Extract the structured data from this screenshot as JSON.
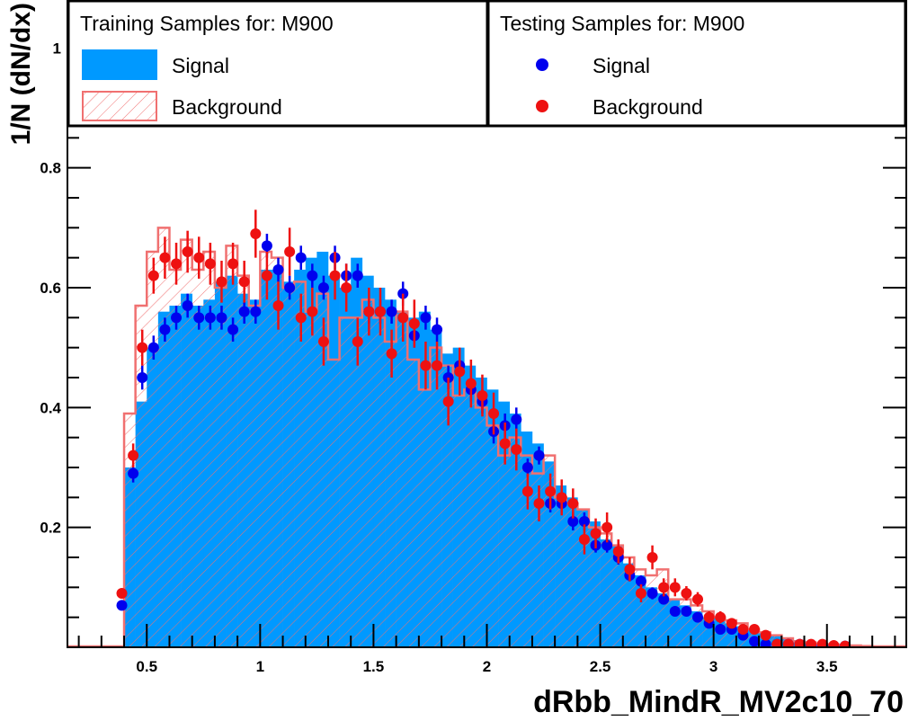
{
  "chart_data": {
    "type": "histogram",
    "xlabel": "dRbb_MindR_MV2c10_70",
    "ylabel": "1/N (dN/dx)",
    "xlim": [
      0.15,
      3.85
    ],
    "ylim": [
      0.0,
      1.08
    ],
    "bin_width": 0.05,
    "x_ticks": [
      {
        "value": 0.5,
        "label": "0.5"
      },
      {
        "value": 1.0,
        "label": "1"
      },
      {
        "value": 1.5,
        "label": "1.5"
      },
      {
        "value": 2.0,
        "label": "2"
      },
      {
        "value": 2.5,
        "label": "2.5"
      },
      {
        "value": 3.0,
        "label": "3"
      },
      {
        "value": 3.5,
        "label": "3.5"
      }
    ],
    "y_ticks": [
      {
        "value": 0.2,
        "label": "0.2"
      },
      {
        "value": 0.4,
        "label": "0.4"
      },
      {
        "value": 0.6,
        "label": "0.6"
      },
      {
        "value": 0.8,
        "label": "0.8"
      },
      {
        "value": 1.0,
        "label": "1"
      }
    ],
    "legend_left": {
      "title": "Training Samples for: M900",
      "entries": [
        {
          "label": "Signal",
          "style": "filled",
          "color": "#0099ff"
        },
        {
          "label": "Background",
          "style": "hatched",
          "color": "#f07070"
        }
      ]
    },
    "legend_right": {
      "title": "Testing Samples for: M900",
      "entries": [
        {
          "label": "Signal",
          "style": "marker",
          "color": "#0000ee"
        },
        {
          "label": "Background",
          "style": "marker",
          "color": "#ee1111"
        }
      ]
    },
    "series": [
      {
        "name": "Signal (training)",
        "style": "filled",
        "color": "#0099ff",
        "bin_start": 0.4,
        "values": [
          0.3,
          0.41,
          0.5,
          0.56,
          0.57,
          0.59,
          0.57,
          0.58,
          0.61,
          0.62,
          0.59,
          0.58,
          0.63,
          0.63,
          0.61,
          0.63,
          0.65,
          0.66,
          0.62,
          0.6,
          0.65,
          0.62,
          0.6,
          0.58,
          0.56,
          0.55,
          0.56,
          0.53,
          0.49,
          0.5,
          0.47,
          0.45,
          0.43,
          0.41,
          0.39,
          0.36,
          0.34,
          0.31,
          0.27,
          0.25,
          0.23,
          0.21,
          0.18,
          0.17,
          0.14,
          0.12,
          0.1,
          0.09,
          0.08,
          0.07,
          0.06,
          0.05,
          0.05,
          0.04,
          0.035,
          0.03,
          0.025,
          0.02,
          0.015,
          0.012,
          0.01,
          0.008,
          0.006,
          0.005,
          0.004,
          0.003
        ]
      },
      {
        "name": "Background (training)",
        "style": "hatched",
        "color": "#f07070",
        "bin_start": 0.4,
        "values": [
          0.39,
          0.57,
          0.66,
          0.7,
          0.63,
          0.68,
          0.63,
          0.66,
          0.6,
          0.67,
          0.62,
          0.57,
          0.66,
          0.65,
          0.6,
          0.61,
          0.56,
          0.59,
          0.48,
          0.55,
          0.55,
          0.58,
          0.55,
          0.51,
          0.56,
          0.48,
          0.43,
          0.5,
          0.47,
          0.42,
          0.43,
          0.4,
          0.37,
          0.32,
          0.35,
          0.32,
          0.29,
          0.32,
          0.25,
          0.24,
          0.23,
          0.2,
          0.19,
          0.17,
          0.15,
          0.13,
          0.12,
          0.13,
          0.08,
          0.08,
          0.07,
          0.06,
          0.05,
          0.045,
          0.04,
          0.03,
          0.025,
          0.02,
          0.015,
          0.01,
          0.008,
          0.006,
          0.005,
          0.004,
          0.003,
          0.002
        ]
      },
      {
        "name": "Signal (testing)",
        "style": "marker",
        "color": "#0000ee",
        "points": [
          [
            0.39,
            0.07,
            0.005
          ],
          [
            0.44,
            0.29,
            0.015
          ],
          [
            0.48,
            0.45,
            0.02
          ],
          [
            0.53,
            0.5,
            0.02
          ],
          [
            0.58,
            0.53,
            0.02
          ],
          [
            0.63,
            0.55,
            0.02
          ],
          [
            0.68,
            0.57,
            0.02
          ],
          [
            0.73,
            0.55,
            0.02
          ],
          [
            0.78,
            0.55,
            0.02
          ],
          [
            0.83,
            0.55,
            0.02
          ],
          [
            0.88,
            0.53,
            0.02
          ],
          [
            0.93,
            0.56,
            0.02
          ],
          [
            0.98,
            0.56,
            0.02
          ],
          [
            1.03,
            0.67,
            0.02
          ],
          [
            1.08,
            0.63,
            0.02
          ],
          [
            1.13,
            0.6,
            0.02
          ],
          [
            1.18,
            0.65,
            0.02
          ],
          [
            1.23,
            0.62,
            0.02
          ],
          [
            1.28,
            0.6,
            0.02
          ],
          [
            1.33,
            0.65,
            0.02
          ],
          [
            1.38,
            0.62,
            0.02
          ],
          [
            1.43,
            0.62,
            0.02
          ],
          [
            1.48,
            0.56,
            0.02
          ],
          [
            1.53,
            0.56,
            0.02
          ],
          [
            1.58,
            0.56,
            0.02
          ],
          [
            1.63,
            0.59,
            0.02
          ],
          [
            1.68,
            0.52,
            0.02
          ],
          [
            1.73,
            0.55,
            0.02
          ],
          [
            1.78,
            0.53,
            0.02
          ],
          [
            1.83,
            0.45,
            0.02
          ],
          [
            1.88,
            0.47,
            0.02
          ],
          [
            1.93,
            0.43,
            0.02
          ],
          [
            1.98,
            0.41,
            0.02
          ],
          [
            2.03,
            0.36,
            0.02
          ],
          [
            2.08,
            0.37,
            0.02
          ],
          [
            2.13,
            0.38,
            0.02
          ],
          [
            2.18,
            0.3,
            0.015
          ],
          [
            2.23,
            0.32,
            0.015
          ],
          [
            2.28,
            0.24,
            0.015
          ],
          [
            2.33,
            0.24,
            0.015
          ],
          [
            2.38,
            0.21,
            0.015
          ],
          [
            2.43,
            0.21,
            0.015
          ],
          [
            2.48,
            0.17,
            0.012
          ],
          [
            2.53,
            0.17,
            0.012
          ],
          [
            2.58,
            0.15,
            0.012
          ],
          [
            2.63,
            0.12,
            0.01
          ],
          [
            2.68,
            0.11,
            0.01
          ],
          [
            2.73,
            0.09,
            0.01
          ],
          [
            2.78,
            0.08,
            0.008
          ],
          [
            2.83,
            0.06,
            0.006
          ],
          [
            2.88,
            0.06,
            0.006
          ],
          [
            2.93,
            0.05,
            0.005
          ],
          [
            2.98,
            0.04,
            0.005
          ],
          [
            3.03,
            0.03,
            0.004
          ],
          [
            3.08,
            0.03,
            0.004
          ],
          [
            3.13,
            0.02,
            0.004
          ],
          [
            3.18,
            0.01,
            0.003
          ],
          [
            3.23,
            0.005,
            0.002
          ],
          [
            3.28,
            0.005,
            0.002
          ],
          [
            3.33,
            0.005,
            0.002
          ],
          [
            3.38,
            0.005,
            0.002
          ],
          [
            3.43,
            0.003,
            0.002
          ],
          [
            3.48,
            0.003,
            0.002
          ],
          [
            3.53,
            0.002,
            0.002
          ],
          [
            3.58,
            0.002,
            0.002
          ]
        ]
      },
      {
        "name": "Background (testing)",
        "style": "marker",
        "color": "#ee1111",
        "points": [
          [
            0.39,
            0.09,
            0.005
          ],
          [
            0.44,
            0.32,
            0.02
          ],
          [
            0.48,
            0.5,
            0.03
          ],
          [
            0.53,
            0.62,
            0.03
          ],
          [
            0.58,
            0.65,
            0.035
          ],
          [
            0.63,
            0.64,
            0.035
          ],
          [
            0.68,
            0.66,
            0.035
          ],
          [
            0.73,
            0.65,
            0.035
          ],
          [
            0.78,
            0.64,
            0.035
          ],
          [
            0.83,
            0.61,
            0.035
          ],
          [
            0.88,
            0.64,
            0.035
          ],
          [
            0.93,
            0.61,
            0.035
          ],
          [
            0.98,
            0.69,
            0.04
          ],
          [
            1.03,
            0.62,
            0.04
          ],
          [
            1.08,
            0.57,
            0.04
          ],
          [
            1.13,
            0.66,
            0.04
          ],
          [
            1.18,
            0.55,
            0.04
          ],
          [
            1.23,
            0.56,
            0.04
          ],
          [
            1.28,
            0.51,
            0.04
          ],
          [
            1.33,
            0.62,
            0.04
          ],
          [
            1.38,
            0.6,
            0.04
          ],
          [
            1.43,
            0.51,
            0.04
          ],
          [
            1.48,
            0.56,
            0.04
          ],
          [
            1.53,
            0.56,
            0.04
          ],
          [
            1.58,
            0.49,
            0.04
          ],
          [
            1.63,
            0.55,
            0.04
          ],
          [
            1.68,
            0.54,
            0.04
          ],
          [
            1.73,
            0.47,
            0.04
          ],
          [
            1.78,
            0.47,
            0.04
          ],
          [
            1.83,
            0.41,
            0.04
          ],
          [
            1.88,
            0.46,
            0.04
          ],
          [
            1.93,
            0.44,
            0.04
          ],
          [
            1.98,
            0.42,
            0.035
          ],
          [
            2.03,
            0.39,
            0.035
          ],
          [
            2.08,
            0.34,
            0.035
          ],
          [
            2.13,
            0.33,
            0.035
          ],
          [
            2.18,
            0.26,
            0.03
          ],
          [
            2.23,
            0.24,
            0.03
          ],
          [
            2.28,
            0.26,
            0.03
          ],
          [
            2.33,
            0.25,
            0.03
          ],
          [
            2.38,
            0.24,
            0.025
          ],
          [
            2.43,
            0.18,
            0.025
          ],
          [
            2.48,
            0.19,
            0.025
          ],
          [
            2.53,
            0.2,
            0.025
          ],
          [
            2.58,
            0.16,
            0.02
          ],
          [
            2.63,
            0.13,
            0.02
          ],
          [
            2.68,
            0.09,
            0.015
          ],
          [
            2.73,
            0.15,
            0.02
          ],
          [
            2.78,
            0.1,
            0.015
          ],
          [
            2.83,
            0.1,
            0.015
          ],
          [
            2.88,
            0.09,
            0.012
          ],
          [
            2.93,
            0.08,
            0.012
          ],
          [
            2.98,
            0.05,
            0.01
          ],
          [
            3.03,
            0.05,
            0.01
          ],
          [
            3.08,
            0.04,
            0.008
          ],
          [
            3.13,
            0.03,
            0.008
          ],
          [
            3.18,
            0.03,
            0.006
          ],
          [
            3.23,
            0.02,
            0.006
          ],
          [
            3.28,
            0.005,
            0.004
          ],
          [
            3.33,
            0.005,
            0.004
          ],
          [
            3.38,
            0.005,
            0.004
          ],
          [
            3.43,
            0.005,
            0.004
          ],
          [
            3.48,
            0.005,
            0.003
          ],
          [
            3.53,
            0.003,
            0.003
          ],
          [
            3.58,
            0.002,
            0.003
          ]
        ]
      }
    ]
  }
}
